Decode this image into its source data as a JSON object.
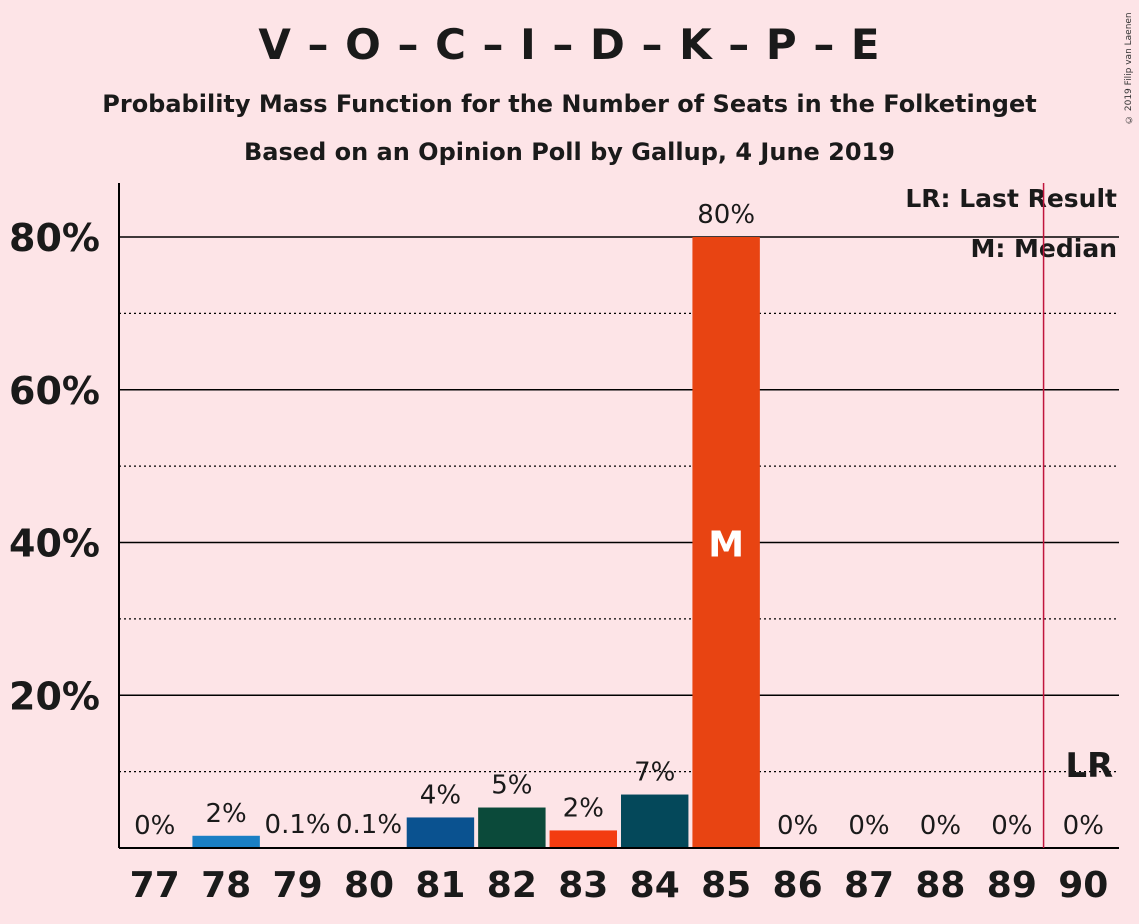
{
  "title": "V – O – C – I – D – K – P – E",
  "subtitle1": "Probability Mass Function for the Number of Seats in the Folketinget",
  "subtitle2": "Based on an Opinion Poll by Gallup, 4 June 2019",
  "copyright": "© 2019 Filip van Laenen",
  "legend": {
    "last_result": "LR: Last Result",
    "median": "M: Median"
  },
  "median_marker": "M",
  "lr_marker": "LR",
  "colors": {
    "background": "#fde4e7",
    "lr_line": "#c0143c",
    "grid": "#000000"
  },
  "chart_data": {
    "type": "bar",
    "categories": [
      "77",
      "78",
      "79",
      "80",
      "81",
      "82",
      "83",
      "84",
      "85",
      "86",
      "87",
      "88",
      "89",
      "90"
    ],
    "values": [
      0,
      1.6,
      0.1,
      0.1,
      4,
      5.3,
      2.3,
      7,
      80,
      0,
      0,
      0,
      0,
      0
    ],
    "labels": [
      "0%",
      "2%",
      "0.1%",
      "0.1%",
      "4%",
      "5%",
      "2%",
      "7%",
      "80%",
      "0%",
      "0%",
      "0%",
      "0%",
      "0%"
    ],
    "bar_colors": [
      "#1a7fc4",
      "#1a7fc4",
      "#1a7fc4",
      "#1a7fc4",
      "#0a5290",
      "#0b4a3a",
      "#f33c10",
      "#04485a",
      "#e84412",
      "#e84412",
      "#e84412",
      "#e84412",
      "#e84412",
      "#e84412"
    ],
    "yticks": [
      "20%",
      "40%",
      "60%",
      "80%"
    ],
    "ytick_values": [
      20,
      40,
      60,
      80
    ],
    "minor_gridlines": [
      10,
      30,
      50,
      70
    ],
    "ylim": [
      0,
      87
    ],
    "median": "85",
    "last_result": "90",
    "grid": true,
    "legend_position": "top-right"
  }
}
